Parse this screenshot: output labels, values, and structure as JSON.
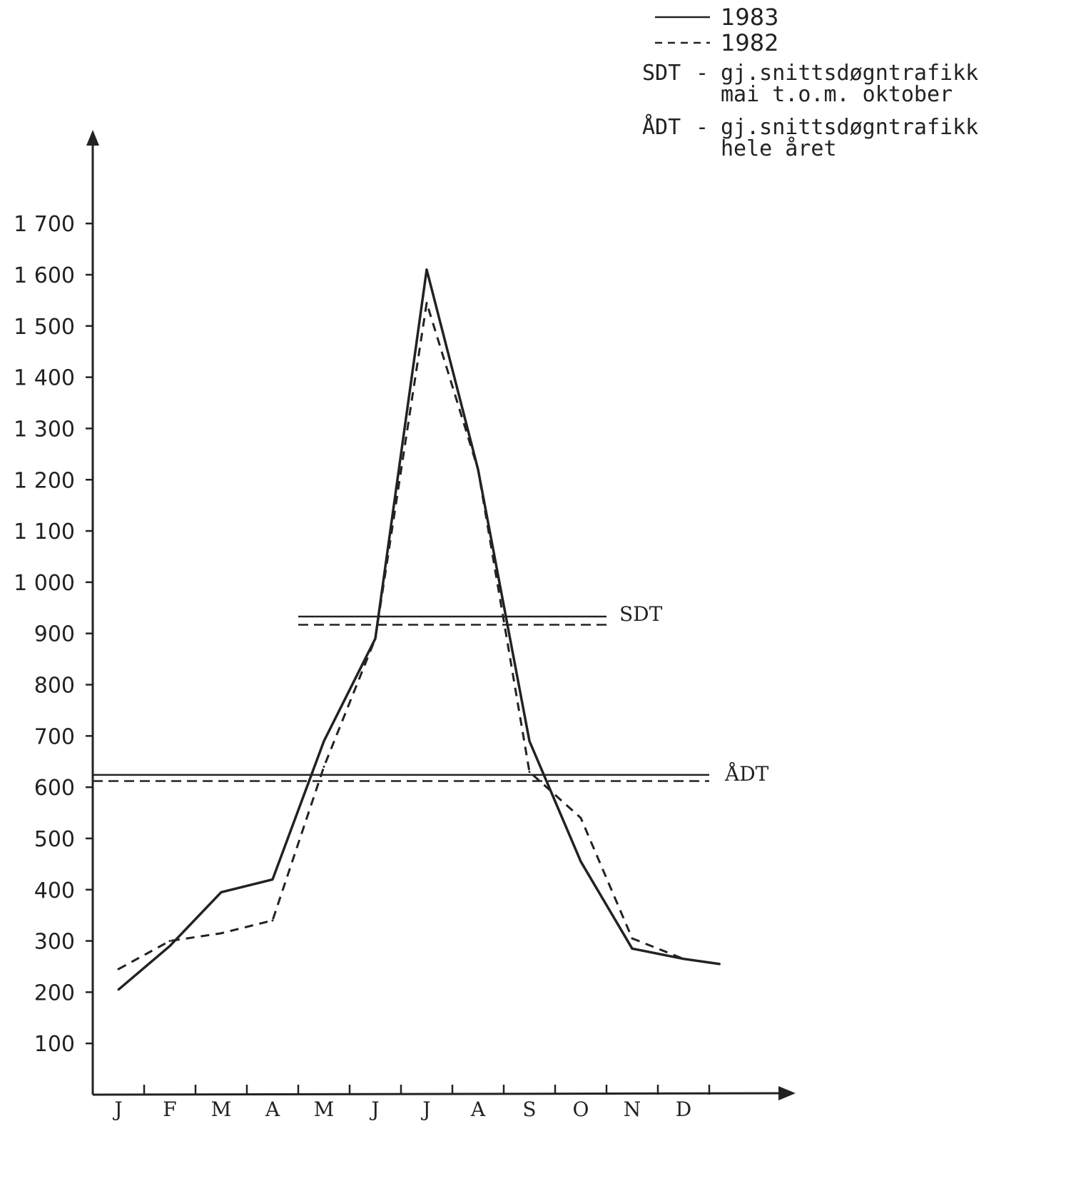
{
  "chart_data": {
    "type": "line",
    "categories": [
      "J",
      "F",
      "M",
      "A",
      "M",
      "J",
      "J",
      "A",
      "S",
      "O",
      "N",
      "D"
    ],
    "y_ticks": [
      100,
      200,
      300,
      400,
      500,
      600,
      700,
      800,
      900,
      1000,
      1100,
      1200,
      1300,
      1400,
      1500,
      1600,
      1700
    ],
    "y_tick_labels": [
      "100",
      "200",
      "300",
      "400",
      "500",
      "600",
      "700",
      "800",
      "900",
      "1 000",
      "1 100",
      "1 200",
      "1 300",
      "1 400",
      "1 500",
      "1 600",
      "1 700"
    ],
    "ylim": [
      0,
      1900
    ],
    "grid": false,
    "series": [
      {
        "name": "1983",
        "style": "solid",
        "x": [
          0.5,
          1.5,
          2.5,
          3.5,
          4.5,
          5.5,
          6.5,
          7.5,
          8.5,
          9.5,
          10.5,
          11.5,
          12.2
        ],
        "values": [
          205,
          290,
          395,
          420,
          690,
          890,
          1610,
          1220,
          690,
          455,
          285,
          265,
          255
        ]
      },
      {
        "name": "1982",
        "style": "dashed",
        "x": [
          0.5,
          1.5,
          2.5,
          3.5,
          4.5,
          5.5,
          6.5,
          7.5,
          8.5,
          9.5,
          10.5,
          11.5,
          12.2
        ],
        "values": [
          245,
          300,
          315,
          340,
          640,
          890,
          1545,
          1220,
          630,
          540,
          305,
          265,
          255
        ]
      }
    ],
    "reference_lines": [
      {
        "label": "SDT",
        "series": "1983",
        "style": "solid",
        "value": 933,
        "x_range": [
          4,
          10
        ]
      },
      {
        "label": "SDT",
        "series": "1982",
        "style": "dashed",
        "value": 917,
        "x_range": [
          4,
          10
        ]
      },
      {
        "label": "ÅDT",
        "series": "1983",
        "style": "solid",
        "value": 624,
        "x_range": [
          0,
          12
        ]
      },
      {
        "label": "ÅDT",
        "series": "1982",
        "style": "dashed",
        "value": 612,
        "x_range": [
          0,
          12
        ]
      }
    ],
    "ref_labels": {
      "sdt": "SDT",
      "adt": "ÅDT"
    },
    "legend": {
      "placement": "top-right",
      "entries": [
        {
          "label": "1983",
          "style": "solid"
        },
        {
          "label": "1982",
          "style": "dashed"
        }
      ],
      "definitions": [
        {
          "abbr": "SDT",
          "dash": "-",
          "lines": [
            "gj.snittsdøgntrafikk",
            "mai t.o.m. oktober"
          ]
        },
        {
          "abbr": "ÅDT",
          "dash": "-",
          "lines": [
            "gj.snittsdøgntrafikk",
            "hele året"
          ]
        }
      ]
    },
    "colors": {
      "ink": "#222222",
      "background": "#ffffff"
    }
  }
}
